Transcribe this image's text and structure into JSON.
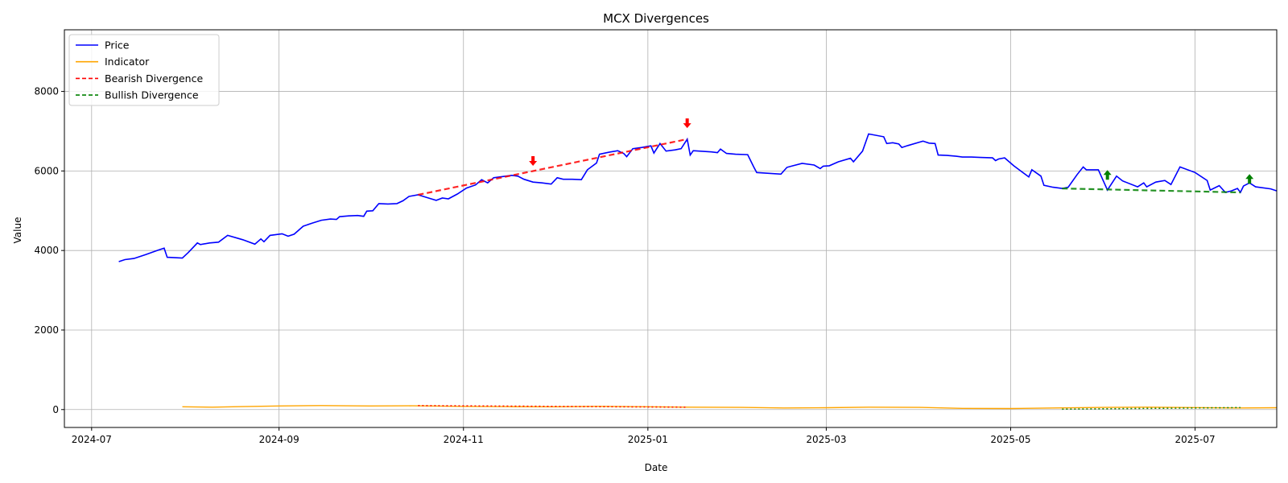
{
  "chart_data": {
    "type": "line",
    "title": "MCX Divergences",
    "xlabel": "Date",
    "ylabel": "Value",
    "xlim": [
      "2024-06-22",
      "2025-07-28"
    ],
    "ylim": [
      -450,
      9550
    ],
    "grid": true,
    "legend_position": "top-left",
    "x_ticks": [
      "2024-07",
      "2024-09",
      "2024-11",
      "2025-01",
      "2025-03",
      "2025-05",
      "2025-07"
    ],
    "x_tick_dates": [
      "2024-07-01",
      "2024-09-01",
      "2024-11-01",
      "2025-01-01",
      "2025-03-01",
      "2025-05-01",
      "2025-07-01"
    ],
    "y_ticks": [
      0,
      2000,
      4000,
      6000,
      8000
    ],
    "colors": {
      "price": "#0000ff",
      "indicator": "#ffa500",
      "bearish": "#ff0000",
      "bullish": "#008000"
    },
    "series": [
      {
        "name": "Price",
        "style": "solid",
        "points": [
          [
            "2024-07-10",
            3720
          ],
          [
            "2024-07-12",
            3770
          ],
          [
            "2024-07-15",
            3800
          ],
          [
            "2024-07-19",
            3900
          ],
          [
            "2024-07-23",
            4010
          ],
          [
            "2024-07-25",
            4060
          ],
          [
            "2024-07-26",
            3830
          ],
          [
            "2024-07-31",
            3810
          ],
          [
            "2024-08-02",
            3950
          ],
          [
            "2024-08-05",
            4190
          ],
          [
            "2024-08-06",
            4150
          ],
          [
            "2024-08-09",
            4190
          ],
          [
            "2024-08-12",
            4210
          ],
          [
            "2024-08-15",
            4380
          ],
          [
            "2024-08-20",
            4270
          ],
          [
            "2024-08-24",
            4160
          ],
          [
            "2024-08-26",
            4290
          ],
          [
            "2024-08-27",
            4220
          ],
          [
            "2024-08-29",
            4380
          ],
          [
            "2024-09-02",
            4420
          ],
          [
            "2024-09-04",
            4360
          ],
          [
            "2024-09-06",
            4410
          ],
          [
            "2024-09-09",
            4610
          ],
          [
            "2024-09-12",
            4690
          ],
          [
            "2024-09-15",
            4760
          ],
          [
            "2024-09-18",
            4790
          ],
          [
            "2024-09-20",
            4780
          ],
          [
            "2024-09-21",
            4850
          ],
          [
            "2024-09-24",
            4870
          ],
          [
            "2024-09-27",
            4880
          ],
          [
            "2024-09-29",
            4860
          ],
          [
            "2024-09-30",
            4990
          ],
          [
            "2024-10-02",
            5000
          ],
          [
            "2024-10-04",
            5180
          ],
          [
            "2024-10-07",
            5170
          ],
          [
            "2024-10-10",
            5180
          ],
          [
            "2024-10-12",
            5250
          ],
          [
            "2024-10-14",
            5360
          ],
          [
            "2024-10-17",
            5400
          ],
          [
            "2024-10-20",
            5330
          ],
          [
            "2024-10-23",
            5260
          ],
          [
            "2024-10-25",
            5320
          ],
          [
            "2024-10-27",
            5300
          ],
          [
            "2024-10-30",
            5420
          ],
          [
            "2024-11-02",
            5570
          ],
          [
            "2024-11-05",
            5650
          ],
          [
            "2024-11-07",
            5780
          ],
          [
            "2024-11-09",
            5700
          ],
          [
            "2024-11-11",
            5830
          ],
          [
            "2024-11-14",
            5860
          ],
          [
            "2024-11-17",
            5890
          ],
          [
            "2024-11-19",
            5870
          ],
          [
            "2024-11-21",
            5790
          ],
          [
            "2024-11-24",
            5720
          ],
          [
            "2024-11-27",
            5700
          ],
          [
            "2024-11-30",
            5670
          ],
          [
            "2024-12-02",
            5830
          ],
          [
            "2024-12-04",
            5790
          ],
          [
            "2024-12-07",
            5790
          ],
          [
            "2024-12-10",
            5780
          ],
          [
            "2024-12-12",
            6030
          ],
          [
            "2024-12-15",
            6200
          ],
          [
            "2024-12-16",
            6420
          ],
          [
            "2024-12-19",
            6470
          ],
          [
            "2024-12-22",
            6510
          ],
          [
            "2024-12-24",
            6440
          ],
          [
            "2024-12-25",
            6360
          ],
          [
            "2024-12-27",
            6560
          ],
          [
            "2024-12-30",
            6590
          ],
          [
            "2025-01-02",
            6630
          ],
          [
            "2025-01-03",
            6450
          ],
          [
            "2025-01-05",
            6690
          ],
          [
            "2025-01-07",
            6500
          ],
          [
            "2025-01-10",
            6530
          ],
          [
            "2025-01-12",
            6560
          ],
          [
            "2025-01-14",
            6800
          ],
          [
            "2025-01-15",
            6400
          ],
          [
            "2025-01-16",
            6510
          ],
          [
            "2025-01-22",
            6480
          ],
          [
            "2025-01-24",
            6460
          ],
          [
            "2025-01-25",
            6550
          ],
          [
            "2025-01-27",
            6440
          ],
          [
            "2025-01-30",
            6420
          ],
          [
            "2025-02-03",
            6410
          ],
          [
            "2025-02-05",
            6100
          ],
          [
            "2025-02-06",
            5960
          ],
          [
            "2025-02-10",
            5940
          ],
          [
            "2025-02-14",
            5920
          ],
          [
            "2025-02-16",
            6090
          ],
          [
            "2025-02-18",
            6130
          ],
          [
            "2025-02-21",
            6190
          ],
          [
            "2025-02-25",
            6150
          ],
          [
            "2025-02-27",
            6060
          ],
          [
            "2025-02-28",
            6120
          ],
          [
            "2025-03-02",
            6130
          ],
          [
            "2025-03-05",
            6230
          ],
          [
            "2025-03-09",
            6320
          ],
          [
            "2025-03-10",
            6230
          ],
          [
            "2025-03-13",
            6500
          ],
          [
            "2025-03-15",
            6930
          ],
          [
            "2025-03-20",
            6860
          ],
          [
            "2025-03-21",
            6690
          ],
          [
            "2025-03-23",
            6710
          ],
          [
            "2025-03-25",
            6680
          ],
          [
            "2025-03-26",
            6590
          ],
          [
            "2025-03-28",
            6640
          ],
          [
            "2025-04-02",
            6750
          ],
          [
            "2025-04-04",
            6700
          ],
          [
            "2025-04-06",
            6690
          ],
          [
            "2025-04-07",
            6400
          ],
          [
            "2025-04-10",
            6390
          ],
          [
            "2025-04-13",
            6370
          ],
          [
            "2025-04-15",
            6350
          ],
          [
            "2025-04-18",
            6350
          ],
          [
            "2025-04-21",
            6340
          ],
          [
            "2025-04-25",
            6330
          ],
          [
            "2025-04-26",
            6260
          ],
          [
            "2025-04-27",
            6300
          ],
          [
            "2025-04-29",
            6330
          ],
          [
            "2025-05-02",
            6130
          ],
          [
            "2025-05-07",
            5850
          ],
          [
            "2025-05-08",
            6030
          ],
          [
            "2025-05-11",
            5870
          ],
          [
            "2025-05-12",
            5640
          ],
          [
            "2025-05-15",
            5590
          ],
          [
            "2025-05-18",
            5560
          ],
          [
            "2025-05-20",
            5590
          ],
          [
            "2025-05-23",
            5910
          ],
          [
            "2025-05-25",
            6100
          ],
          [
            "2025-05-26",
            6030
          ],
          [
            "2025-05-30",
            6030
          ],
          [
            "2025-06-02",
            5520
          ],
          [
            "2025-06-05",
            5870
          ],
          [
            "2025-06-07",
            5750
          ],
          [
            "2025-06-12",
            5600
          ],
          [
            "2025-06-14",
            5700
          ],
          [
            "2025-06-15",
            5600
          ],
          [
            "2025-06-18",
            5720
          ],
          [
            "2025-06-21",
            5760
          ],
          [
            "2025-06-23",
            5660
          ],
          [
            "2025-06-26",
            6100
          ],
          [
            "2025-07-01",
            5960
          ],
          [
            "2025-07-05",
            5760
          ],
          [
            "2025-07-06",
            5520
          ],
          [
            "2025-07-09",
            5630
          ],
          [
            "2025-07-11",
            5460
          ],
          [
            "2025-07-13",
            5500
          ],
          [
            "2025-07-15",
            5560
          ],
          [
            "2025-07-16",
            5460
          ],
          [
            "2025-07-17",
            5620
          ],
          [
            "2025-07-19",
            5700
          ],
          [
            "2025-07-21",
            5600
          ],
          [
            "2025-07-26",
            5550
          ],
          [
            "2025-07-28",
            5500
          ]
        ]
      },
      {
        "name": "Indicator",
        "style": "solid",
        "points": [
          [
            "2024-07-31",
            70
          ],
          [
            "2024-08-10",
            60
          ],
          [
            "2024-08-20",
            75
          ],
          [
            "2024-09-01",
            90
          ],
          [
            "2024-09-15",
            100
          ],
          [
            "2024-10-01",
            90
          ],
          [
            "2024-10-15",
            95
          ],
          [
            "2024-11-01",
            80
          ],
          [
            "2024-11-15",
            75
          ],
          [
            "2024-12-01",
            70
          ],
          [
            "2024-12-15",
            80
          ],
          [
            "2025-01-01",
            70
          ],
          [
            "2025-01-15",
            60
          ],
          [
            "2025-02-01",
            55
          ],
          [
            "2025-02-15",
            40
          ],
          [
            "2025-03-01",
            45
          ],
          [
            "2025-03-15",
            60
          ],
          [
            "2025-04-01",
            55
          ],
          [
            "2025-04-15",
            30
          ],
          [
            "2025-05-01",
            25
          ],
          [
            "2025-05-15",
            40
          ],
          [
            "2025-06-01",
            55
          ],
          [
            "2025-06-15",
            60
          ],
          [
            "2025-07-01",
            50
          ],
          [
            "2025-07-15",
            40
          ],
          [
            "2025-07-28",
            45
          ]
        ]
      }
    ],
    "divergences": [
      {
        "name": "Bearish Divergence",
        "type": "bearish",
        "price": [
          [
            "2024-10-17",
            5400
          ],
          [
            "2025-01-14",
            6800
          ]
        ],
        "indicator": [
          [
            "2024-10-17",
            100
          ],
          [
            "2025-01-14",
            60
          ]
        ],
        "arrows": [
          [
            "2024-11-24",
            6250
          ],
          [
            "2025-01-14",
            7200
          ]
        ]
      },
      {
        "name": "Bullish Divergence",
        "type": "bullish",
        "price": [
          [
            "2025-05-18",
            5560
          ],
          [
            "2025-07-16",
            5460
          ]
        ],
        "indicator": [
          [
            "2025-05-18",
            10
          ],
          [
            "2025-07-16",
            50
          ]
        ],
        "arrows": [
          [
            "2025-06-02",
            5900
          ],
          [
            "2025-07-19",
            5800
          ]
        ]
      }
    ],
    "legend": [
      {
        "label": "Price",
        "style": "solid",
        "color": "#0000ff"
      },
      {
        "label": "Indicator",
        "style": "solid",
        "color": "#ffa500"
      },
      {
        "label": "Bearish Divergence",
        "style": "dashed",
        "color": "#ff0000"
      },
      {
        "label": "Bullish Divergence",
        "style": "dashed",
        "color": "#008000"
      }
    ]
  }
}
